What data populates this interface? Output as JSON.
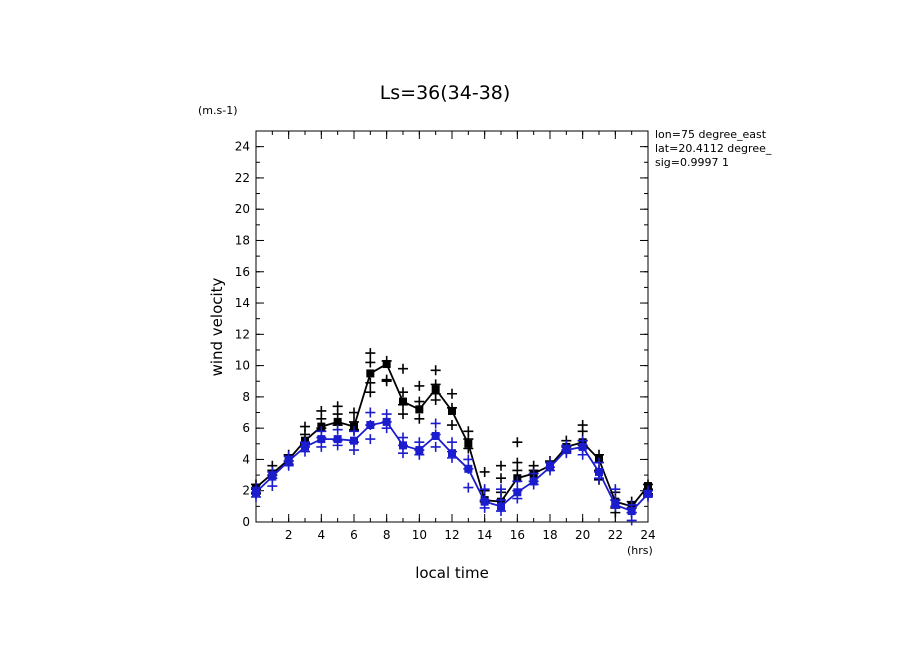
{
  "chart_data": {
    "type": "line",
    "title": "Ls=36(34-38)",
    "ylabel": "wind velocity",
    "xlabel": "local time",
    "yunit": "(m.s-1)",
    "xunit": "(hrs)",
    "xlim": [
      0,
      24
    ],
    "ylim": [
      0,
      25
    ],
    "xticks": [
      2,
      4,
      6,
      8,
      10,
      12,
      14,
      16,
      18,
      20,
      22,
      24
    ],
    "yticks": [
      0,
      2,
      4,
      6,
      8,
      10,
      12,
      14,
      16,
      18,
      20,
      22,
      24
    ],
    "x": [
      0,
      1,
      2,
      3,
      4,
      5,
      6,
      7,
      8,
      9,
      10,
      11,
      12,
      13,
      14,
      15,
      16,
      17,
      18,
      19,
      20,
      21,
      22,
      23,
      24
    ],
    "annotations": [
      "lon=75 degree_east",
      "lat=20.4112 degree_",
      "sig=0.9997 1"
    ],
    "series": [
      {
        "color": "#000000",
        "values": [
          2.2,
          3.1,
          4.0,
          5.2,
          6.1,
          6.4,
          6.1,
          9.5,
          10.1,
          7.7,
          7.2,
          8.5,
          7.1,
          5.0,
          1.4,
          1.3,
          2.8,
          3.1,
          3.6,
          4.8,
          5.1,
          4.0,
          1.3,
          1.0,
          2.3
        ],
        "spread": [
          [
            2.4,
            2.1,
            1.8
          ],
          [
            3.6,
            3.3,
            3.0
          ],
          [
            4.3,
            3.9,
            3.7
          ],
          [
            6.1,
            5.6,
            5.0
          ],
          [
            7.1,
            6.6,
            6.0
          ],
          [
            7.4,
            6.9,
            6.2
          ],
          [
            7.0,
            6.4,
            5.9
          ],
          [
            10.8,
            10.2,
            8.9,
            8.3
          ],
          [
            10.3,
            9.1,
            9.0
          ],
          [
            9.8,
            8.3,
            7.5,
            6.9
          ],
          [
            8.7,
            7.7,
            6.6
          ],
          [
            9.7,
            8.8,
            8.2,
            7.8
          ],
          [
            8.2,
            7.3,
            6.2
          ],
          [
            5.8,
            5.3,
            4.7
          ],
          [
            3.2,
            2.0,
            1.3
          ],
          [
            3.6,
            2.8,
            1.9
          ],
          [
            5.1,
            3.8,
            3.3
          ],
          [
            3.6,
            3.3
          ],
          [
            3.9,
            3.5
          ],
          [
            5.2,
            4.8,
            4.5
          ],
          [
            6.2,
            5.8,
            5.2,
            4.9
          ],
          [
            4.3,
            3.3,
            2.7
          ],
          [
            1.9,
            1.4,
            0.9,
            0.6
          ],
          [
            1.3,
            0.9,
            0.6
          ],
          [
            2.4,
            2.1,
            1.8
          ]
        ]
      },
      {
        "color": "#1c1ccf",
        "values": [
          1.9,
          2.9,
          3.9,
          4.8,
          5.3,
          5.3,
          5.2,
          6.2,
          6.4,
          4.9,
          4.6,
          5.5,
          4.4,
          3.4,
          1.3,
          1.0,
          1.9,
          2.6,
          3.5,
          4.6,
          4.8,
          3.2,
          1.1,
          0.7,
          1.8
        ],
        "spread": [
          [
            2.2,
            1.9,
            1.6
          ],
          [
            3.2,
            2.8,
            2.3
          ],
          [
            4.2,
            3.9,
            3.6
          ],
          [
            5.1,
            4.8,
            4.5
          ],
          [
            5.8,
            5.4,
            4.8
          ],
          [
            5.9,
            5.2,
            4.9
          ],
          [
            5.8,
            5.1,
            4.6
          ],
          [
            7.0,
            6.2,
            5.3
          ],
          [
            6.9,
            6.4,
            6.0
          ],
          [
            5.4,
            4.9,
            4.4
          ],
          [
            5.1,
            4.6,
            4.3
          ],
          [
            6.3,
            5.6,
            4.8
          ],
          [
            5.1,
            4.5,
            4.1
          ],
          [
            4.0,
            3.4,
            2.2
          ],
          [
            2.1,
            1.4,
            0.9
          ],
          [
            2.1,
            1.4,
            0.7
          ],
          [
            2.6,
            2.0,
            1.5
          ],
          [
            3.1,
            2.6,
            2.4
          ],
          [
            3.8,
            3.5,
            3.3
          ],
          [
            4.9,
            4.6,
            4.4
          ],
          [
            5.2,
            4.7,
            4.3
          ],
          [
            3.8,
            3.2,
            2.8
          ],
          [
            2.1,
            1.4,
            1.0
          ],
          [
            1.1,
            0.6,
            0.1
          ],
          [
            2.0,
            1.7,
            1.6
          ]
        ]
      }
    ]
  }
}
